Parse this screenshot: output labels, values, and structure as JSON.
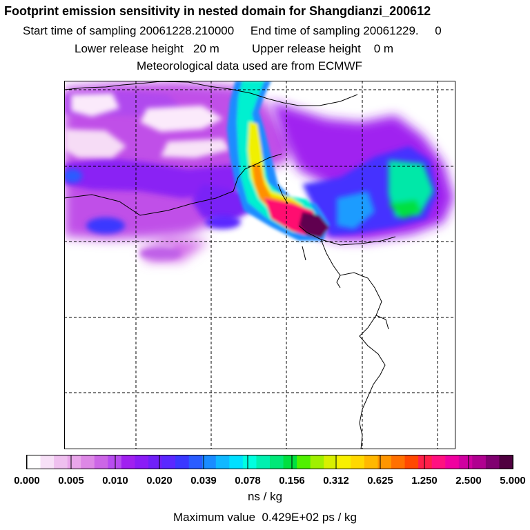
{
  "header": {
    "title": "Footprint emission sensitivity in nested domain for Shangdianzi_200612",
    "line1": "Start time of sampling 20061228.210000     End time of sampling 20061229.     0",
    "line2": "Lower release height   20 m          Upper release height    0 m",
    "line3": "Meteorological data used are from ECMWF"
  },
  "colorbar": {
    "ticks": [
      "0.000",
      "0.005",
      "0.010",
      "0.020",
      "0.039",
      "0.078",
      "0.156",
      "0.312",
      "0.625",
      "1.250",
      "2.500",
      "5.000"
    ],
    "colors": [
      "#ffffff",
      "#f7e0f7",
      "#efc0ef",
      "#e9a6ea",
      "#dd88e6",
      "#cc66e6",
      "#b84cf0",
      "#a020f0",
      "#8a1cf6",
      "#7020f8",
      "#5a28ff",
      "#3a38ff",
      "#2a5cff",
      "#1a8cff",
      "#10b8ff",
      "#00e0ff",
      "#00ffe0",
      "#00f0b0",
      "#00e878",
      "#00e040",
      "#50f000",
      "#a0f000",
      "#d8f000",
      "#f8f000",
      "#ffd800",
      "#ffb800",
      "#ff9600",
      "#ff7000",
      "#ff4800",
      "#ff2048",
      "#ff1080",
      "#f000a0",
      "#d000a0",
      "#b00090",
      "#800070",
      "#500040"
    ],
    "unit": "ns / kg",
    "max_label": "Maximum value  0.429E+02 ps / kg"
  },
  "chart_data": {
    "type": "heatmap",
    "title": "Footprint emission sensitivity in nested domain for Shangdianzi_200612",
    "colorbar_unit": "ns / kg",
    "colorbar_levels": [
      0.0,
      0.005,
      0.01,
      0.02,
      0.039,
      0.078,
      0.156,
      0.312,
      0.625,
      1.25,
      2.5,
      5.0
    ],
    "max_value_text": "Maximum value  0.429E+02 ps / kg",
    "grid": true,
    "features": [
      {
        "feature": "main plume",
        "level": 0.078
      },
      {
        "feature": "plume core",
        "level": 0.625
      },
      {
        "feature": "receptor maximum",
        "level": 5.0
      },
      {
        "feature": "eastern blob",
        "level": 0.039
      },
      {
        "feature": "background field",
        "level": 0.005
      }
    ]
  }
}
